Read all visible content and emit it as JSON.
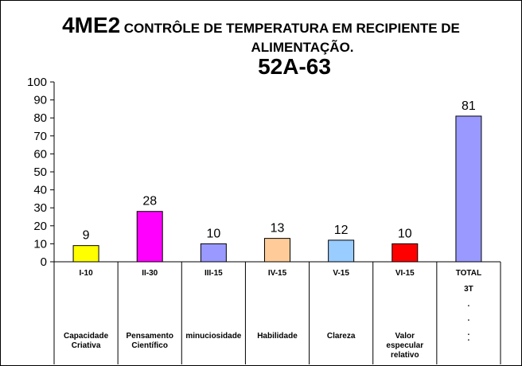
{
  "title": {
    "code": "4ME2",
    "main": "CONTRÔLE DE TEMPERATURA EM RECIPIENTE DE",
    "main_line2": "ALIMENTAÇÃO.",
    "subtitle": "52A-63"
  },
  "chart_data": {
    "type": "bar",
    "ylim": [
      0,
      100
    ],
    "yticks": [
      0,
      10,
      20,
      30,
      40,
      50,
      60,
      70,
      80,
      90,
      100
    ],
    "grid": false,
    "categories": [
      "I-10",
      "II-30",
      "III-15",
      "IV-15",
      "V-15",
      "VI-15",
      "TOTAL"
    ],
    "category_labels_row2": [
      "",
      "",
      "",
      "",
      "",
      "",
      "3T"
    ],
    "category_dots": [
      "",
      "",
      "",
      "",
      "",
      "",
      ". . ."
    ],
    "category_names": [
      [
        "Capacidade",
        "Criativa"
      ],
      [
        "Pensamento",
        "Científico"
      ],
      [
        "minuciosidade"
      ],
      [
        "Habilidade"
      ],
      [
        "Clareza"
      ],
      [
        "Valor",
        "especular",
        "relativo"
      ],
      [
        "."
      ]
    ],
    "values": [
      9,
      28,
      10,
      13,
      12,
      10,
      81
    ],
    "colors": [
      "#ffff00",
      "#ff00ff",
      "#9999ff",
      "#ffcc99",
      "#99ccff",
      "#ff0000",
      "#9999ff"
    ]
  }
}
